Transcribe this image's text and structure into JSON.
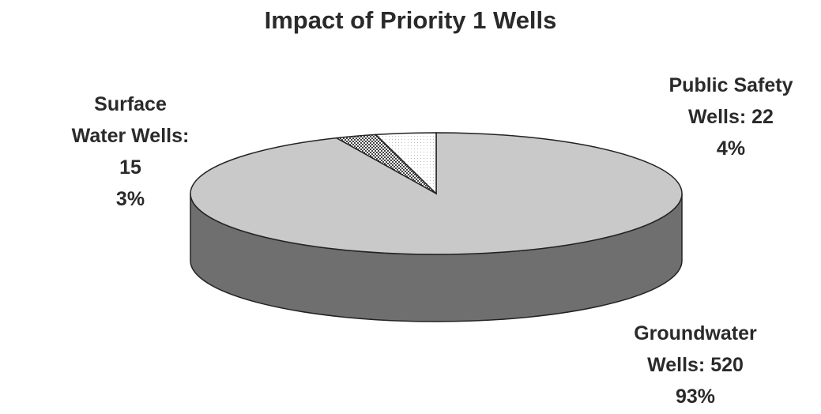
{
  "chart_data": {
    "type": "pie3d",
    "title": "Impact of Priority 1 Wells",
    "categories": [
      "Groundwater Wells:",
      "Surface Water Wells:",
      "Public Safety Wells:"
    ],
    "values": [
      520,
      15,
      22
    ],
    "percent_labels": [
      "93%",
      "3%",
      "4%"
    ],
    "colors": [
      "#c9c9c9",
      "#444444",
      "#bbbbbb"
    ]
  }
}
